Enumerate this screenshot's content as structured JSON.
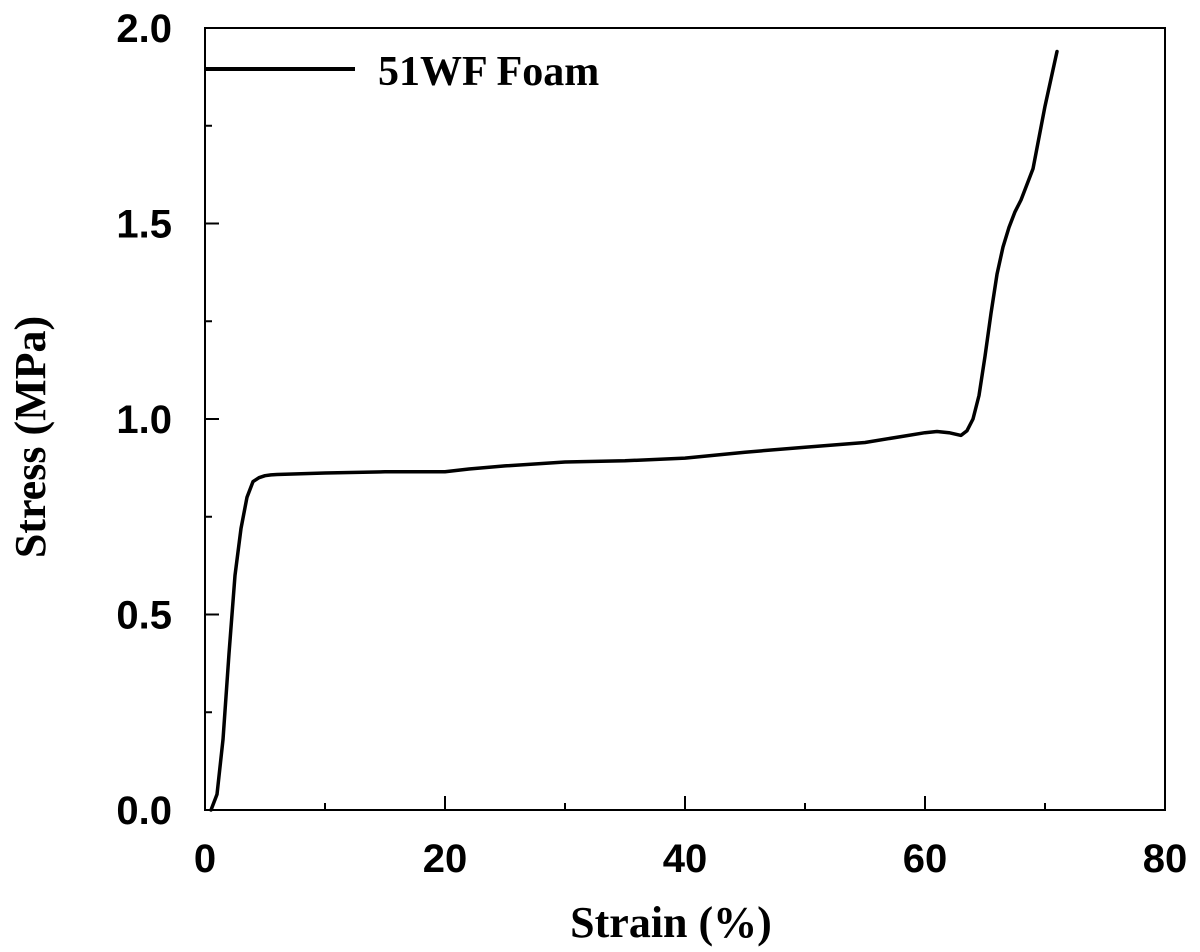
{
  "chart_data": {
    "type": "line",
    "xlabel": "Strain (%)",
    "ylabel": "Stress (MPa)",
    "xlim": [
      0,
      80
    ],
    "ylim": [
      0,
      2.0
    ],
    "x_ticks": [
      0,
      20,
      40,
      60,
      80
    ],
    "x_tick_labels": [
      "0",
      "20",
      "40",
      "60",
      "80"
    ],
    "y_ticks": [
      0,
      0.5,
      1.0,
      1.5,
      2.0
    ],
    "y_tick_labels": [
      "0.0",
      "0.5",
      "1.0",
      "1.5",
      "2.0"
    ],
    "x_minor_step": 10,
    "y_minor_step": 0.25,
    "grid": false,
    "legend": {
      "position": "top-left"
    },
    "series": [
      {
        "name": "51WF Foam",
        "color": "#000000",
        "x": [
          0.5,
          1.0,
          1.5,
          2.0,
          2.5,
          3.0,
          3.5,
          4.0,
          4.5,
          5.0,
          5.5,
          6.0,
          10,
          15,
          20,
          22,
          25,
          30,
          35,
          40,
          45,
          50,
          55,
          58,
          60,
          61,
          62,
          63,
          63.5,
          64,
          64.5,
          65,
          65.5,
          66,
          66.5,
          67,
          67.5,
          68,
          69,
          70,
          71
        ],
        "y": [
          0.0,
          0.04,
          0.18,
          0.4,
          0.6,
          0.72,
          0.8,
          0.84,
          0.85,
          0.855,
          0.857,
          0.858,
          0.862,
          0.865,
          0.865,
          0.872,
          0.88,
          0.89,
          0.893,
          0.9,
          0.915,
          0.928,
          0.94,
          0.955,
          0.965,
          0.968,
          0.965,
          0.958,
          0.97,
          1.0,
          1.06,
          1.16,
          1.27,
          1.37,
          1.44,
          1.49,
          1.53,
          1.56,
          1.64,
          1.8,
          1.94
        ]
      }
    ]
  }
}
